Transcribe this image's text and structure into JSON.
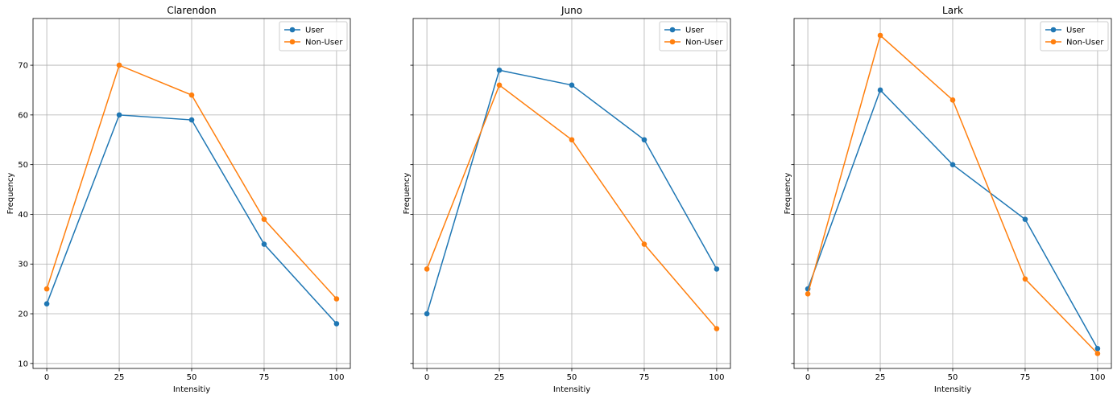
{
  "chart_data": [
    {
      "type": "line",
      "title": "Clarendon",
      "xlabel": "Intensitiy",
      "ylabel": "Frequency",
      "x": [
        0,
        25,
        50,
        75,
        100
      ],
      "xticks": [
        "0",
        "25",
        "50",
        "75",
        "100"
      ],
      "yticks": [
        "10",
        "20",
        "30",
        "40",
        "50",
        "60",
        "70"
      ],
      "ylim": [
        9,
        79.4
      ],
      "show_ytick_labels": true,
      "grid": true,
      "legend_position": "top-right",
      "series": [
        {
          "name": "User",
          "color": "#1f77b4",
          "values": [
            22,
            60,
            59,
            34,
            18
          ]
        },
        {
          "name": "Non-User",
          "color": "#ff7f0e",
          "values": [
            25,
            70,
            64,
            39,
            23
          ]
        }
      ]
    },
    {
      "type": "line",
      "title": "Juno",
      "xlabel": "Intensitiy",
      "ylabel": "Frequency",
      "x": [
        0,
        25,
        50,
        75,
        100
      ],
      "xticks": [
        "0",
        "25",
        "50",
        "75",
        "100"
      ],
      "yticks": [
        "10",
        "20",
        "30",
        "40",
        "50",
        "60",
        "70"
      ],
      "ylim": [
        9,
        79.4
      ],
      "show_ytick_labels": false,
      "grid": true,
      "legend_position": "top-right",
      "series": [
        {
          "name": "User",
          "color": "#1f77b4",
          "values": [
            20,
            69,
            66,
            55,
            29
          ]
        },
        {
          "name": "Non-User",
          "color": "#ff7f0e",
          "values": [
            29,
            66,
            55,
            34,
            17
          ]
        }
      ]
    },
    {
      "type": "line",
      "title": "Lark",
      "xlabel": "Intensitiy",
      "ylabel": "Frequency",
      "x": [
        0,
        25,
        50,
        75,
        100
      ],
      "xticks": [
        "0",
        "25",
        "50",
        "75",
        "100"
      ],
      "yticks": [
        "10",
        "20",
        "30",
        "40",
        "50",
        "60",
        "70"
      ],
      "ylim": [
        9,
        79.4
      ],
      "show_ytick_labels": false,
      "grid": true,
      "legend_position": "top-right",
      "series": [
        {
          "name": "User",
          "color": "#1f77b4",
          "values": [
            25,
            65,
            50,
            39,
            13
          ]
        },
        {
          "name": "Non-User",
          "color": "#ff7f0e",
          "values": [
            24,
            76,
            63,
            27,
            12
          ]
        }
      ]
    }
  ]
}
